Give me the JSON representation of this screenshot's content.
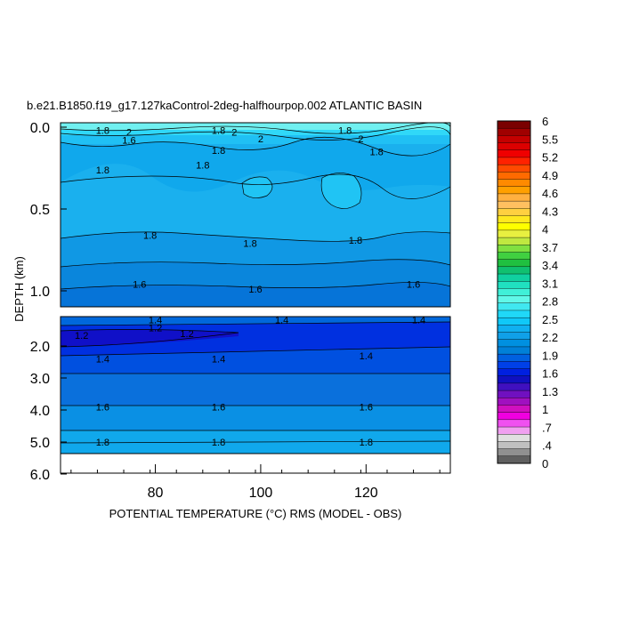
{
  "chart_data": {
    "type": "heatmap",
    "title": "b.e21.B1850.f19_g17.127kaControl-2deg-halfhourpop.002 ATLANTIC BASIN",
    "xlabel": "POTENTIAL TEMPERATURE (°C) RMS (MODEL - OBS)",
    "ylabel": "DEPTH (km)",
    "x_ticks": [
      "80",
      "100",
      "120"
    ],
    "x_tick_values": [
      80,
      100,
      120
    ],
    "xlim": [
      62,
      136
    ],
    "upper_panel": {
      "y_ticks": [
        "0.0",
        "0.5",
        "1.0"
      ],
      "y_tick_values": [
        0.0,
        0.5,
        1.0
      ],
      "ylim": [
        0.0,
        1.1
      ]
    },
    "lower_panel": {
      "y_ticks": [
        "2.0",
        "3.0",
        "4.0",
        "5.0",
        "6.0"
      ],
      "y_tick_values": [
        2.0,
        3.0,
        4.0,
        5.0,
        6.0
      ],
      "ylim": [
        1.1,
        6.0
      ]
    },
    "colorbar": {
      "labels": [
        "6",
        "5.5",
        "5.2",
        "4.9",
        "4.6",
        "4.3",
        "4",
        "3.7",
        "3.4",
        "3.1",
        "2.8",
        "2.5",
        "2.2",
        "1.9",
        "1.6",
        "1.3",
        "1",
        ".7",
        ".4",
        "0"
      ],
      "colors": [
        "#7a0000",
        "#a00000",
        "#c40000",
        "#dc0000",
        "#f00000",
        "#ff2200",
        "#ff4a00",
        "#ff6a00",
        "#ff8a00",
        "#ffa000",
        "#ffb040",
        "#ffc060",
        "#ffd040",
        "#ffe820",
        "#ffff00",
        "#e8f040",
        "#c0e840",
        "#80e040",
        "#40d040",
        "#20c040",
        "#10c070",
        "#10d0a0",
        "#20e0c0",
        "#40f0d8",
        "#60f8e8",
        "#40e8f0",
        "#20d8f8",
        "#10c8f8",
        "#10b0f0",
        "#10a0e8",
        "#0090e0",
        "#0080d8",
        "#0060e0",
        "#0040e8",
        "#0020e0",
        "#1010c0",
        "#4010c0",
        "#7010c0",
        "#a010c0",
        "#d010c0",
        "#f000e0",
        "#f050f0",
        "#f0a0f0",
        "#e0e0e0",
        "#c0c0c0",
        "#909090",
        "#606060"
      ]
    },
    "contour_labels_upper": [
      {
        "text": "1.8",
        "x": 70,
        "depth": 0.02
      },
      {
        "text": "2",
        "x": 75,
        "depth": 0.03
      },
      {
        "text": "1.6",
        "x": 75,
        "depth": 0.08
      },
      {
        "text": "1.8",
        "x": 92,
        "depth": 0.02
      },
      {
        "text": "2",
        "x": 95,
        "depth": 0.03
      },
      {
        "text": "2",
        "x": 100,
        "depth": 0.07
      },
      {
        "text": "1.8",
        "x": 116,
        "depth": 0.02
      },
      {
        "text": "2",
        "x": 119,
        "depth": 0.07
      },
      {
        "text": "1.8",
        "x": 92,
        "depth": 0.14
      },
      {
        "text": "1.8",
        "x": 89,
        "depth": 0.23
      },
      {
        "text": "1.8",
        "x": 70,
        "depth": 0.26
      },
      {
        "text": "1.8",
        "x": 122,
        "depth": 0.15
      },
      {
        "text": "1.8",
        "x": 79,
        "depth": 0.66
      },
      {
        "text": "1.8",
        "x": 98,
        "depth": 0.71
      },
      {
        "text": "1.8",
        "x": 118,
        "depth": 0.69
      },
      {
        "text": "1.6",
        "x": 77,
        "depth": 0.96
      },
      {
        "text": "1.6",
        "x": 99,
        "depth": 0.99
      },
      {
        "text": "1.6",
        "x": 129,
        "depth": 0.96
      }
    ],
    "contour_labels_lower": [
      {
        "text": "1.4",
        "x": 80,
        "depth": 1.15
      },
      {
        "text": "1.4",
        "x": 104,
        "depth": 1.15
      },
      {
        "text": "1.4",
        "x": 130,
        "depth": 1.15
      },
      {
        "text": "1.2",
        "x": 66,
        "depth": 1.65
      },
      {
        "text": "1.2",
        "x": 80,
        "depth": 1.4
      },
      {
        "text": "1.2",
        "x": 86,
        "depth": 1.6
      },
      {
        "text": "1.4",
        "x": 70,
        "depth": 2.4
      },
      {
        "text": "1.4",
        "x": 92,
        "depth": 2.4
      },
      {
        "text": "1.4",
        "x": 120,
        "depth": 2.3
      },
      {
        "text": "1.6",
        "x": 70,
        "depth": 3.9
      },
      {
        "text": "1.6",
        "x": 92,
        "depth": 3.9
      },
      {
        "text": "1.6",
        "x": 120,
        "depth": 3.9
      },
      {
        "text": "1.8",
        "x": 70,
        "depth": 5.0
      },
      {
        "text": "1.8",
        "x": 92,
        "depth": 5.0
      },
      {
        "text": "1.8",
        "x": 120,
        "depth": 5.0
      }
    ]
  }
}
